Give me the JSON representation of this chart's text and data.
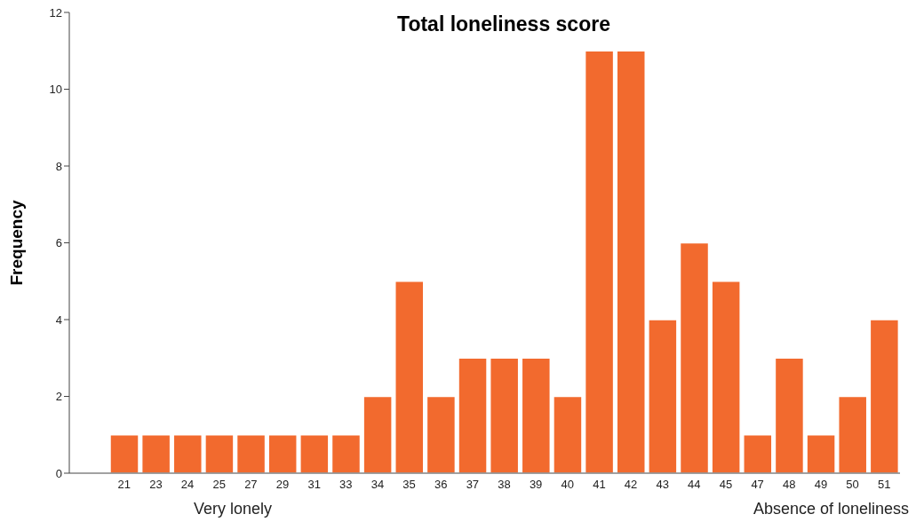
{
  "chart_data": {
    "type": "bar",
    "title": "Total loneliness score",
    "ylabel": "Frequency",
    "categories": [
      "21",
      "23",
      "24",
      "25",
      "27",
      "29",
      "31",
      "33",
      "34",
      "35",
      "36",
      "37",
      "38",
      "39",
      "40",
      "41",
      "42",
      "43",
      "44",
      "45",
      "47",
      "48",
      "49",
      "50",
      "51"
    ],
    "values": [
      1,
      1,
      1,
      1,
      1,
      1,
      1,
      1,
      2,
      5,
      2,
      3,
      3,
      3,
      2,
      11,
      11,
      4,
      6,
      5,
      1,
      3,
      1,
      2,
      4
    ],
    "color": "#f26a2e",
    "ylim": [
      0,
      12
    ],
    "yticks": [
      0,
      2,
      4,
      6,
      8,
      10,
      12
    ],
    "annotations": [
      "Very lonely",
      "Absence of loneliness"
    ]
  }
}
